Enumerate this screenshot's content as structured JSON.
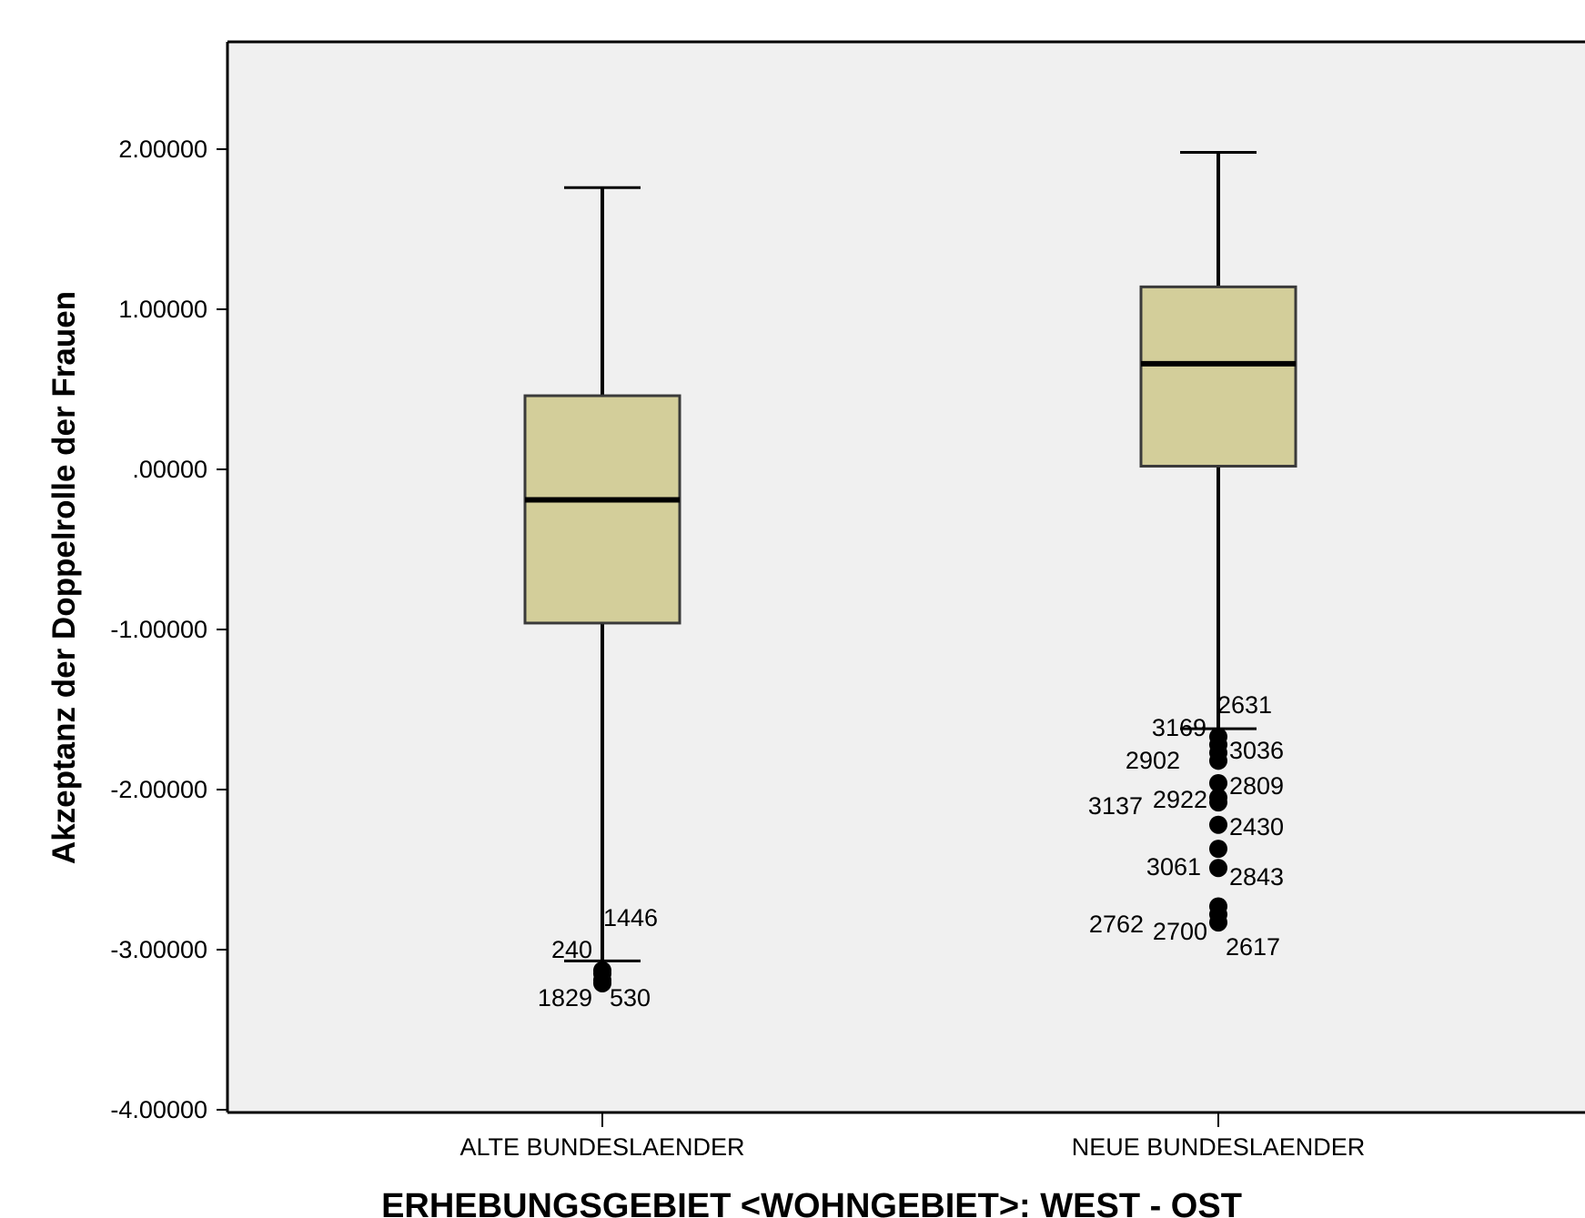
{
  "chart_data": {
    "type": "boxplot",
    "title": "",
    "xlabel": "ERHEBUNGSGEBIET <WOHNGEBIET>: WEST - OST",
    "ylabel": "Akzeptanz der Doppelrolle der Frauen",
    "ylim": [
      -4.0,
      2.67
    ],
    "yticks": [
      2.0,
      1.0,
      0.0,
      -1.0,
      -2.0,
      -3.0,
      -4.0
    ],
    "ytick_labels": [
      "2.00000",
      "1.00000",
      ".00000",
      "-1.00000",
      "-2.00000",
      "-3.00000",
      "-4.00000"
    ],
    "grid": false,
    "colors": {
      "plot_bg": "#f0f0f0",
      "box_fill": "#d3ce9a",
      "stroke": "#000000"
    },
    "categories": [
      "ALTE BUNDESLAENDER",
      "NEUE BUNDESLAENDER"
    ],
    "boxes": [
      {
        "category": "ALTE BUNDESLAENDER",
        "whisker_high": 1.76,
        "q3": 0.46,
        "median": -0.19,
        "q1": -0.96,
        "whisker_low": -3.07,
        "outliers": [
          {
            "label": "1446",
            "value": -3.13
          },
          {
            "label": "240",
            "value": -3.15
          },
          {
            "label": "1829",
            "value": -3.19
          },
          {
            "label": "530",
            "value": -3.21
          }
        ]
      },
      {
        "category": "NEUE BUNDESLAENDER",
        "whisker_high": 1.98,
        "q3": 1.14,
        "median": 0.66,
        "q1": 0.02,
        "whisker_low": -1.62,
        "outliers": [
          {
            "label": "2631",
            "value": -1.67
          },
          {
            "label": "3169",
            "value": -1.72
          },
          {
            "label": "3036",
            "value": -1.77
          },
          {
            "label": "2902",
            "value": -1.82
          },
          {
            "label": "2809",
            "value": -1.96
          },
          {
            "label": "3137",
            "value": -2.05
          },
          {
            "label": "2922",
            "value": -2.08
          },
          {
            "label": "2430",
            "value": -2.22
          },
          {
            "label": "3061",
            "value": -2.37
          },
          {
            "label": "2843",
            "value": -2.49
          },
          {
            "label": "2762",
            "value": -2.73
          },
          {
            "label": "2700",
            "value": -2.78
          },
          {
            "label": "2617",
            "value": -2.83
          }
        ]
      }
    ]
  }
}
